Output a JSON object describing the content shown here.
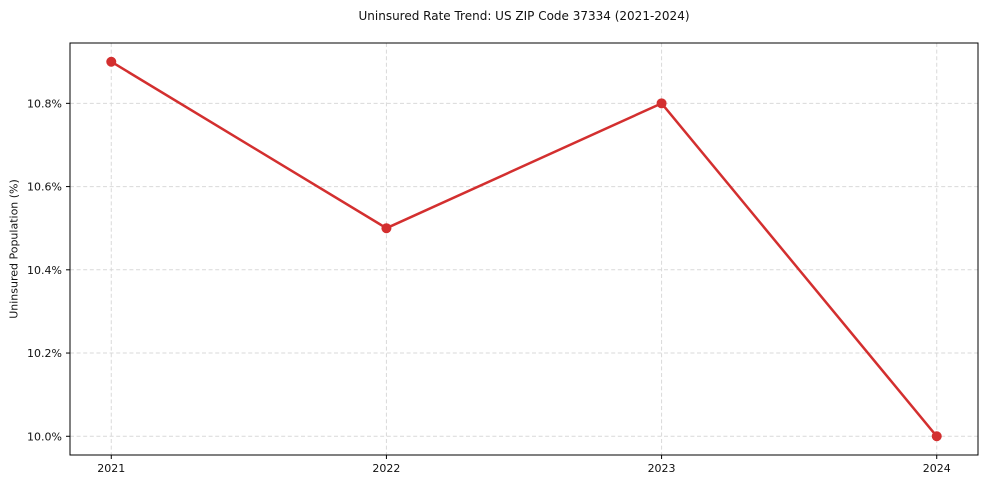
{
  "figure": {
    "background": "#ffffff"
  },
  "chart_data": {
    "type": "line",
    "title": "Uninsured Rate Trend: US ZIP Code 37334 (2021-2024)",
    "xlabel": "",
    "ylabel": "Uninsured Population (%)",
    "x": [
      2021,
      2022,
      2023,
      2024
    ],
    "values": [
      10.9,
      10.5,
      10.8,
      10.0
    ],
    "xlim": [
      2020.85,
      2024.15
    ],
    "ylim": [
      9.955,
      10.945
    ],
    "xticks": [
      {
        "value": 2021,
        "label": "2021"
      },
      {
        "value": 2022,
        "label": "2022"
      },
      {
        "value": 2023,
        "label": "2023"
      },
      {
        "value": 2024,
        "label": "2024"
      }
    ],
    "yticks": [
      {
        "value": 10.0,
        "label": "10.0%"
      },
      {
        "value": 10.2,
        "label": "10.2%"
      },
      {
        "value": 10.4,
        "label": "10.4%"
      },
      {
        "value": 10.6,
        "label": "10.6%"
      },
      {
        "value": 10.8,
        "label": "10.8%"
      }
    ],
    "grid": true,
    "grid_style": "dashed",
    "legend_position": "none",
    "line_color": "#d32f2f",
    "marker": "circle",
    "marker_color": "#d32f2f",
    "grid_color": "#d9d9d9",
    "axis_color": "#000000",
    "text_color": "#111111"
  }
}
